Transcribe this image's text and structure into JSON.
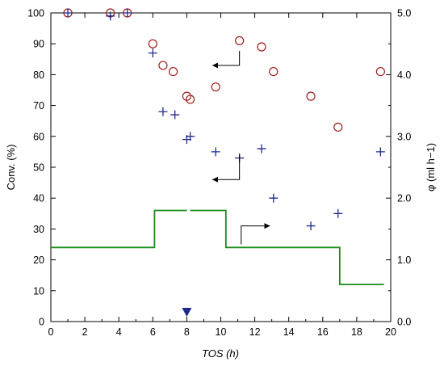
{
  "chart_data": {
    "type": "scatter",
    "xlabel": "TOS (h)",
    "ylabel_left": "Conv. (%)",
    "ylabel_right": "φ (ml h−1)",
    "xlim": [
      0,
      20
    ],
    "ylim_left": [
      0,
      100
    ],
    "ylim_right": [
      0,
      5.0
    ],
    "x_ticks": [
      "0",
      "2",
      "4",
      "6",
      "8",
      "10",
      "12",
      "14",
      "16",
      "18",
      "20"
    ],
    "y_left_ticks": [
      "0",
      "10",
      "20",
      "30",
      "40",
      "50",
      "60",
      "70",
      "80",
      "90",
      "100"
    ],
    "y_right_ticks": [
      "0.0",
      "1.0",
      "2.0",
      "3.0",
      "4.0",
      "5.0"
    ],
    "grid": false,
    "series": [
      {
        "marker": "circle",
        "color": "#a01c1c",
        "axis": "left",
        "points": [
          [
            1.0,
            100
          ],
          [
            3.5,
            100
          ],
          [
            4.5,
            100
          ],
          [
            6.0,
            90
          ],
          [
            6.6,
            83
          ],
          [
            7.2,
            81
          ],
          [
            8.0,
            73
          ],
          [
            8.2,
            72
          ],
          [
            9.7,
            76
          ],
          [
            11.1,
            91
          ],
          [
            12.4,
            89
          ],
          [
            13.1,
            81
          ],
          [
            15.3,
            73
          ],
          [
            16.9,
            63
          ],
          [
            19.4,
            81
          ]
        ]
      },
      {
        "marker": "plus",
        "color": "#1f2a8c",
        "axis": "left",
        "points": [
          [
            1.0,
            100
          ],
          [
            3.5,
            99
          ],
          [
            4.5,
            100
          ],
          [
            6.0,
            87
          ],
          [
            6.6,
            68
          ],
          [
            7.3,
            67
          ],
          [
            8.0,
            59
          ],
          [
            8.2,
            60
          ],
          [
            9.7,
            55
          ],
          [
            11.1,
            53
          ],
          [
            12.4,
            56
          ],
          [
            13.1,
            40
          ],
          [
            15.3,
            31
          ],
          [
            16.9,
            35
          ],
          [
            19.4,
            55
          ]
        ]
      },
      {
        "type": "step",
        "color": "#1a8a1a",
        "axis": "right",
        "segments": [
          [
            [
              0,
              1.2
            ],
            [
              6.1,
              1.2
            ],
            [
              6.1,
              1.8
            ],
            [
              8.0,
              1.8
            ]
          ],
          [
            [
              8.2,
              1.8
            ],
            [
              10.3,
              1.8
            ],
            [
              10.3,
              1.2
            ],
            [
              17.0,
              1.2
            ],
            [
              17.0,
              0.6
            ],
            [
              19.6,
              0.6
            ]
          ]
        ]
      }
    ],
    "axis_arrows": [
      {
        "points": [
          [
            11.1,
            87.7
          ],
          [
            11.1,
            83.0
          ],
          [
            9.5,
            83.0
          ]
        ],
        "direction": "left"
      },
      {
        "points": [
          [
            11.1,
            54.0
          ],
          [
            11.1,
            46.0
          ],
          [
            9.5,
            46.0
          ]
        ],
        "direction": "left"
      },
      {
        "points": [
          [
            11.2,
            25.0
          ],
          [
            11.2,
            31.0
          ],
          [
            12.9,
            31.0
          ]
        ],
        "direction": "right"
      }
    ],
    "marker_triangle": {
      "x": 8.0,
      "color": "#1f2a8c"
    }
  }
}
